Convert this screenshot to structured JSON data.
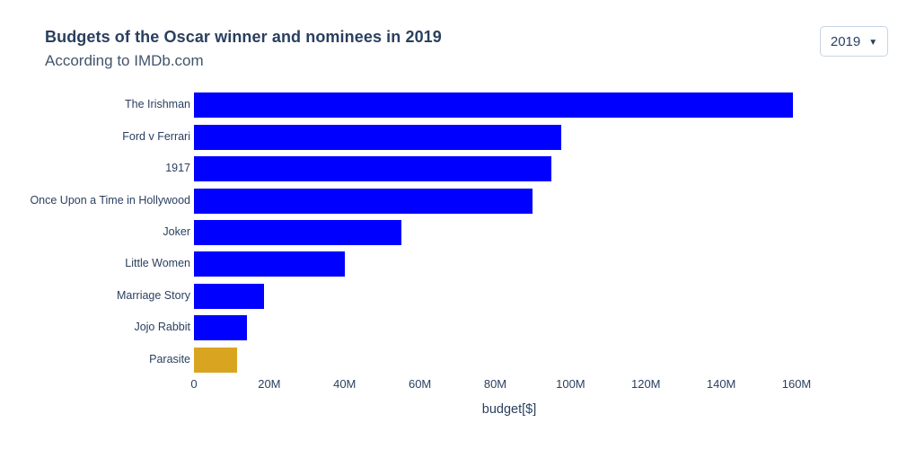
{
  "header": {
    "title": "Budgets of the Oscar winner and nominees in 2019",
    "subtitle": "According to IMDb.com"
  },
  "year_selector": {
    "value": "2019",
    "arrow_icon": "▼"
  },
  "chart_data": {
    "type": "bar",
    "orientation": "horizontal",
    "title": "Budgets of the Oscar winner and nominees in 2019",
    "subtitle": "According to IMDb.com",
    "categories": [
      "The Irishman",
      "Ford v Ferrari",
      "1917",
      "Once Upon a Time in Hollywood",
      "Joker",
      "Little Women",
      "Marriage Story",
      "Jojo Rabbit",
      "Parasite"
    ],
    "values": [
      159,
      97.6,
      95,
      90,
      55,
      40,
      18.6,
      14,
      11.4
    ],
    "values_unit": "M",
    "bar_colors": [
      "#0000ff",
      "#0000ff",
      "#0000ff",
      "#0000ff",
      "#0000ff",
      "#0000ff",
      "#0000ff",
      "#0000ff",
      "#d9a521"
    ],
    "highlighted_category": "Parasite",
    "xlabel": "budget[$]",
    "xtick_values": [
      0,
      20,
      40,
      60,
      80,
      100,
      120,
      140,
      160
    ],
    "xtick_labels": [
      "0",
      "20M",
      "40M",
      "60M",
      "80M",
      "100M",
      "120M",
      "140M",
      "160M"
    ],
    "xlim": [
      0,
      160
    ],
    "grid": false,
    "legend": false
  },
  "colors": {
    "bar_default": "#0000ff",
    "bar_highlight": "#d9a521",
    "title_text": "#2a3f5f",
    "subtitle_text": "#42546b",
    "axis_text": "#2a3f5f",
    "selector_border": "#c8d4e3",
    "background": "#ffffff"
  }
}
